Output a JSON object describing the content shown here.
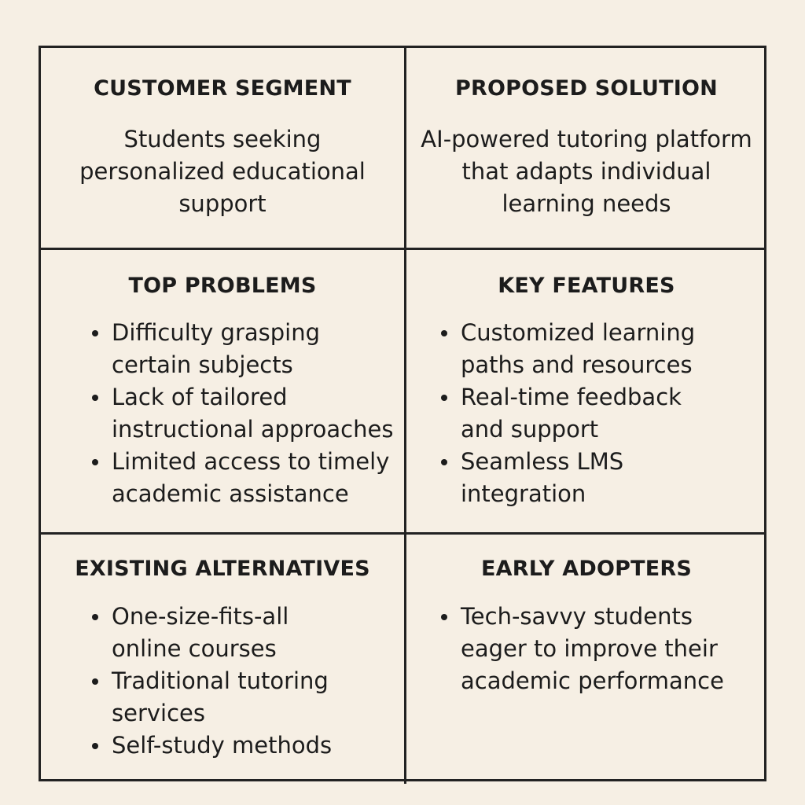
{
  "customer_segment": {
    "heading": "CUSTOMER SEGMENT",
    "text": "Students seeking personalized educational support"
  },
  "proposed_solution": {
    "heading": "PROPOSED SOLUTION",
    "text": "AI-powered tutoring platform that adapts individual learning needs"
  },
  "top_problems": {
    "heading": "TOP PROBLEMS",
    "items": [
      "Difficulty grasping\ncertain subjects",
      "Lack of tailored\ninstructional approaches",
      "Limited access to timely\nacademic assistance"
    ]
  },
  "key_features": {
    "heading": "KEY FEATURES",
    "items": [
      "Customized learning\npaths and resources",
      "Real-time feedback\nand support",
      "Seamless LMS\nintegration"
    ]
  },
  "existing_alternatives": {
    "heading": "EXISTING ALTERNATIVES",
    "items": [
      "One-size-fits-all\nonline courses",
      "Traditional tutoring\nservices",
      "Self-study methods"
    ]
  },
  "early_adopters": {
    "heading": "EARLY ADOPTERS",
    "items": [
      "Tech-savvy students\neager to improve their\nacademic performance"
    ]
  },
  "colors": {
    "background": "#f6efe4",
    "border": "#222222",
    "text": "#1c1c1c"
  }
}
